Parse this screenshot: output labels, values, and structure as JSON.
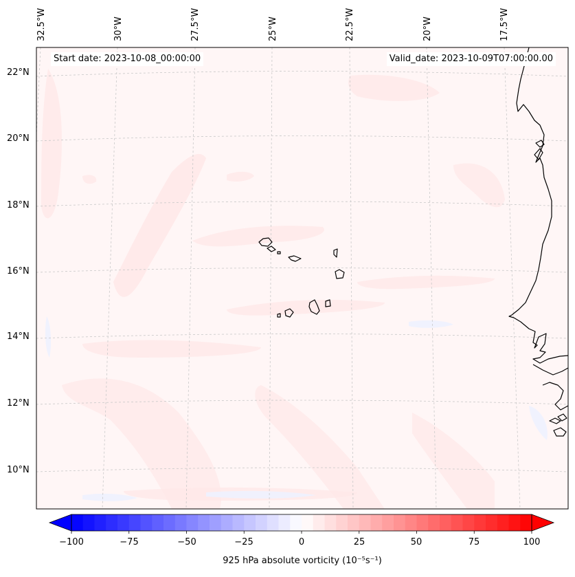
{
  "header": {
    "start_date": "Start date: 2023-10-08_00:00:00",
    "valid_date": "Valid_date: 2023-10-09T07:00:00.00"
  },
  "map": {
    "longitude_labels": [
      "32.5°W",
      "30°W",
      "27.5°W",
      "25°W",
      "22.5°W",
      "20°W",
      "17.5°W"
    ],
    "latitude_labels": [
      "22°N",
      "20°N",
      "18°N",
      "16°N",
      "14°N",
      "12°N",
      "10°N"
    ],
    "colors": {
      "background": "#fff6f6",
      "positive_light": "#ffe6e6",
      "negative_light": "#eef2ff",
      "coastline": "#000000",
      "gridline": "#c8c8c8"
    }
  },
  "colorbar": {
    "label": "925 hPa absolute vorticity (10⁻⁵s⁻¹)",
    "tick_labels": [
      "−100",
      "−75",
      "−50",
      "−25",
      "0",
      "25",
      "50",
      "75",
      "100"
    ],
    "range": [
      -100,
      100
    ],
    "levels": 40,
    "colormap": "bwr"
  }
}
